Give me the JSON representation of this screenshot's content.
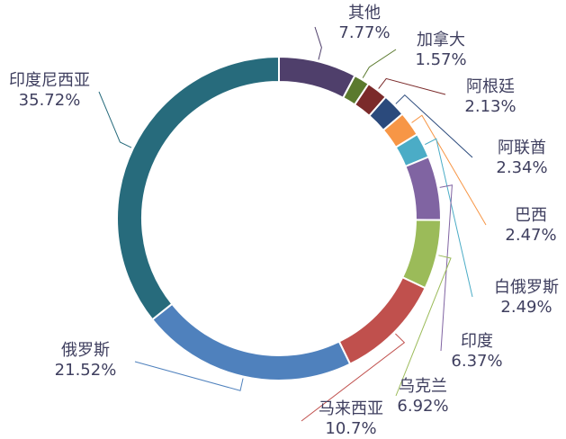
{
  "chart_data": {
    "type": "donut",
    "categories": [
      "其他",
      "加拿大",
      "阿根廷",
      "阿联酋",
      "巴西",
      "白俄罗斯",
      "印度",
      "乌克兰",
      "马来西亚",
      "俄罗斯",
      "印度尼西亚"
    ],
    "values": [
      7.77,
      1.57,
      2.13,
      2.34,
      2.47,
      2.49,
      6.37,
      6.92,
      10.7,
      21.52,
      35.72
    ],
    "value_labels": [
      "7.77%",
      "1.57%",
      "2.13%",
      "2.34%",
      "2.47%",
      "2.49%",
      "6.37%",
      "6.92%",
      "10.7%",
      "21.52%",
      "35.72%"
    ],
    "colors": [
      "#4f3f6b",
      "#5b7a2e",
      "#7b2a2a",
      "#2b4a7c",
      "#f79646",
      "#4bacc6",
      "#8064a2",
      "#9bbb59",
      "#c0504d",
      "#4f81bd",
      "#276b7c"
    ]
  }
}
